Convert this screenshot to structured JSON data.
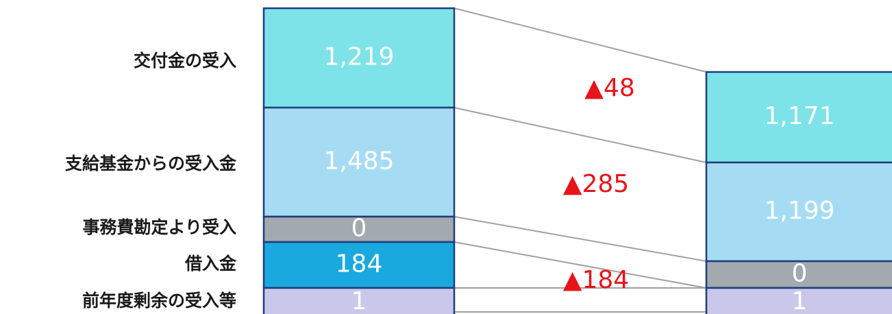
{
  "rows": [
    {
      "label": "交付金の受入",
      "left": "1,219",
      "right": "1,171"
    },
    {
      "label": "支給基金からの受入金",
      "left": "1,485",
      "right": "1,199"
    },
    {
      "label": "事務費勘定より受入",
      "left": "0",
      "right": "0"
    },
    {
      "label": "借入金",
      "left": "184"
    },
    {
      "label": "前年度剰余の受入等",
      "left": "1",
      "right": "1"
    }
  ],
  "deltas": [
    "▲48",
    "▲285",
    "▲184"
  ]
}
